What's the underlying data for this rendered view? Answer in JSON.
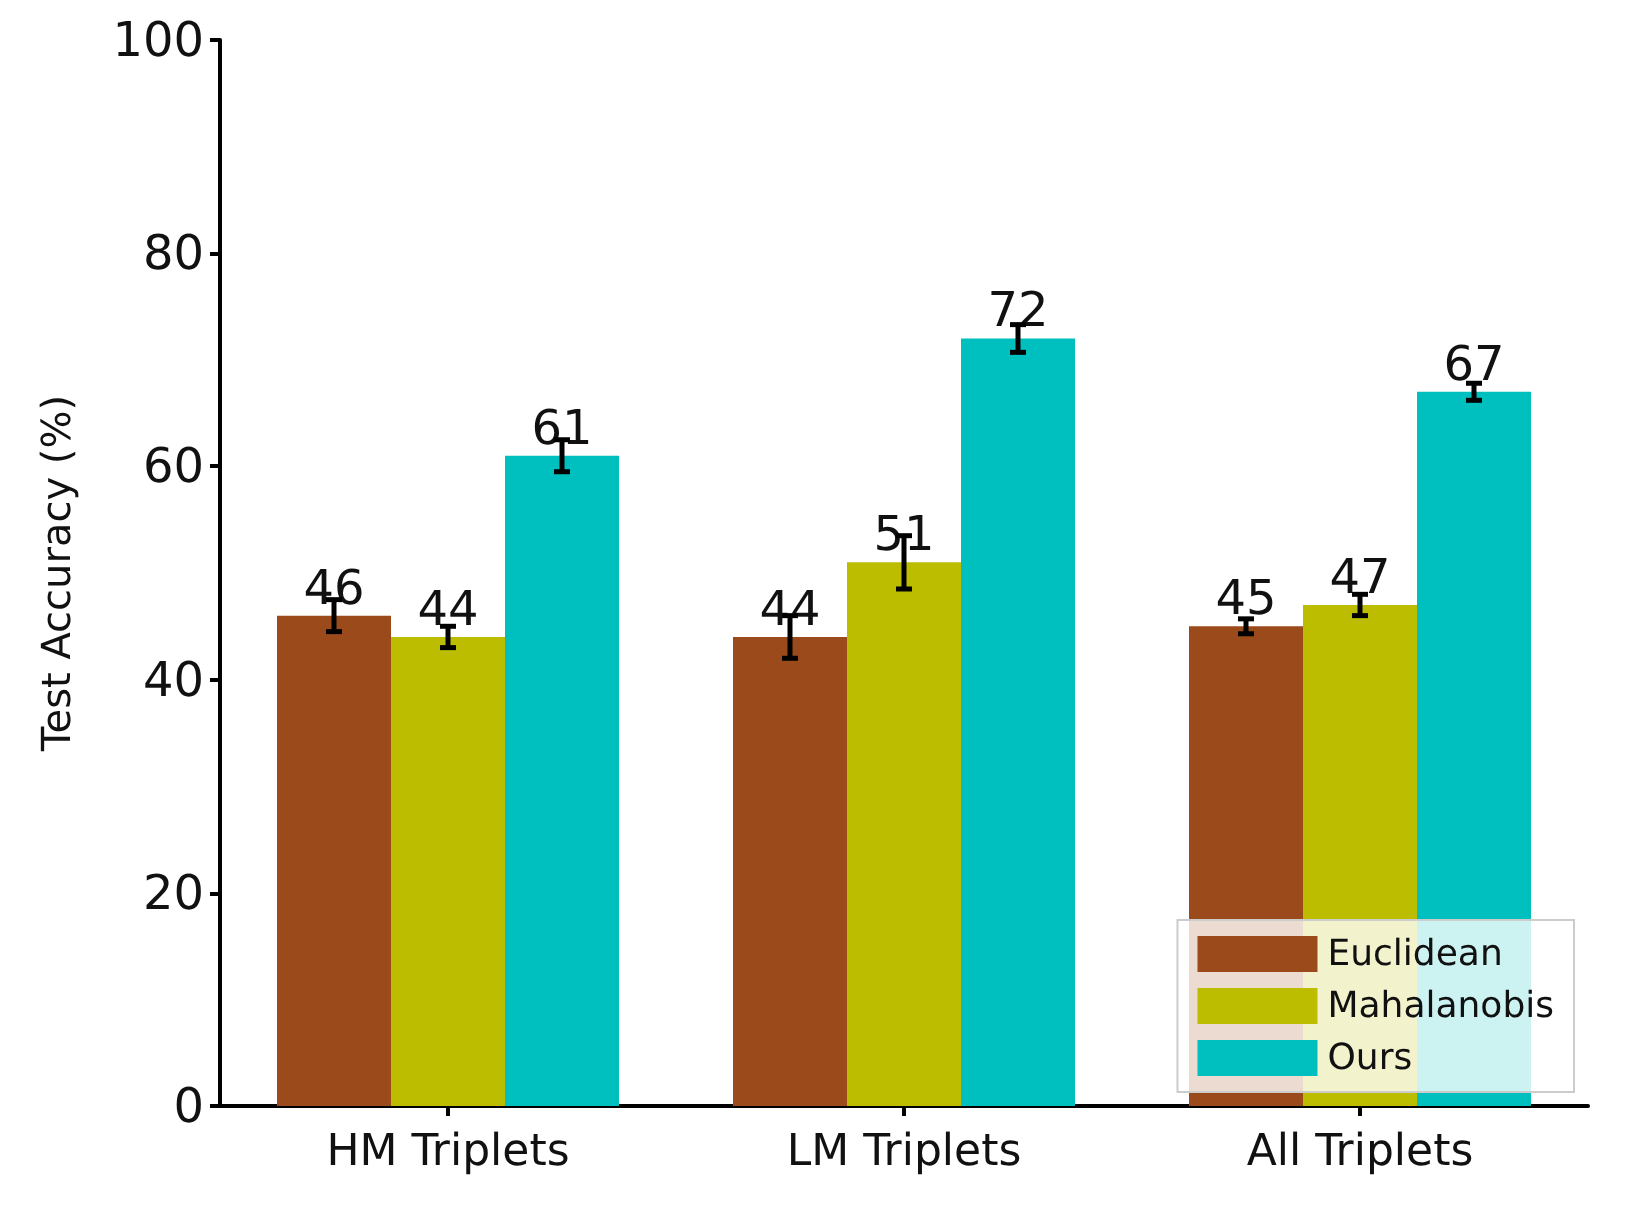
{
  "chart_data": {
    "type": "bar",
    "ylabel": "Test Accuracy (%)",
    "categories": [
      "HM Triplets",
      "LM Triplets",
      "All Triplets"
    ],
    "series": [
      {
        "name": "Euclidean",
        "color": "#9b4a1c",
        "values": [
          46,
          44,
          45
        ],
        "errors": [
          1.5,
          2,
          0.7
        ]
      },
      {
        "name": "Mahalanobis",
        "color": "#bdbd00",
        "values": [
          44,
          51,
          47
        ],
        "errors": [
          1,
          2.5,
          1
        ]
      },
      {
        "name": "Ours",
        "color": "#00bfbf",
        "values": [
          61,
          72,
          67
        ],
        "errors": [
          1.5,
          1.3,
          0.8
        ]
      }
    ],
    "ylim": [
      0,
      100
    ],
    "yticks": [
      0,
      20,
      40,
      60,
      80,
      100
    ],
    "grid": false,
    "legend": "bottom right",
    "data_labels": true
  }
}
